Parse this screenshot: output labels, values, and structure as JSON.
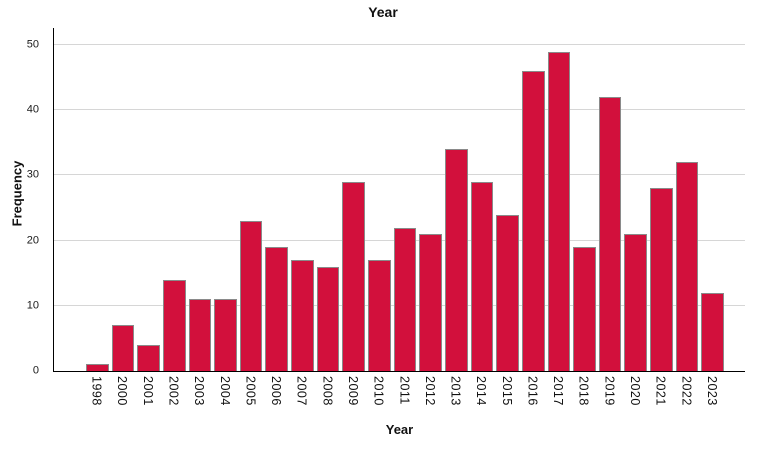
{
  "chart_data": {
    "type": "bar",
    "title": "Year",
    "xlabel": "Year",
    "ylabel": "Frequency",
    "categories": [
      "1998",
      "2000",
      "2001",
      "2002",
      "2003",
      "2004",
      "2005",
      "2006",
      "2007",
      "2008",
      "2009",
      "2010",
      "2011",
      "2012",
      "2013",
      "2014",
      "2015",
      "2016",
      "2017",
      "2018",
      "2019",
      "2020",
      "2021",
      "2022",
      "2023"
    ],
    "values": [
      1,
      7,
      4,
      14,
      11,
      11,
      23,
      19,
      17,
      16,
      29,
      17,
      22,
      21,
      34,
      29,
      24,
      46,
      49,
      19,
      42,
      21,
      28,
      32,
      12
    ],
    "yticks": [
      0,
      10,
      20,
      30,
      40,
      50
    ],
    "ylim": [
      0,
      52.6
    ],
    "grid": "horizontal-only",
    "legend": "none",
    "bar_color": "#d2103c",
    "bar_border_color": "#8a8a8a",
    "gridline_color": "#d6d6d6",
    "axis_color": "#000000"
  }
}
